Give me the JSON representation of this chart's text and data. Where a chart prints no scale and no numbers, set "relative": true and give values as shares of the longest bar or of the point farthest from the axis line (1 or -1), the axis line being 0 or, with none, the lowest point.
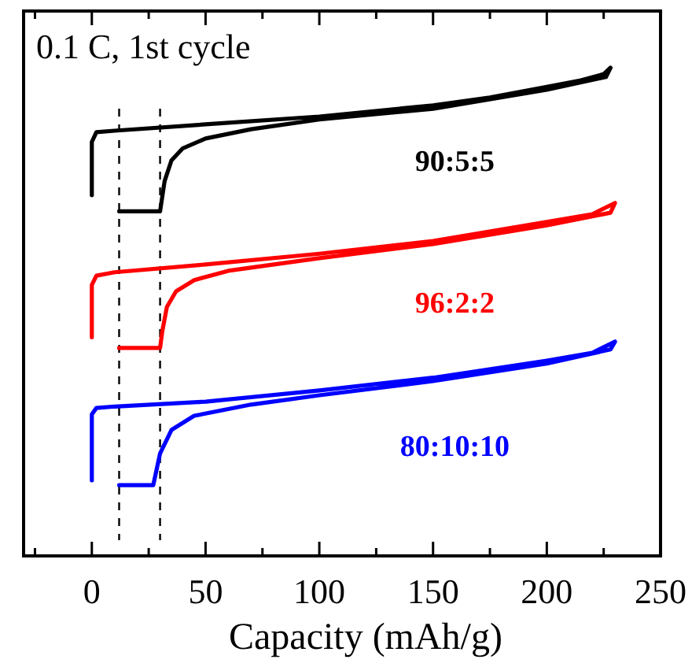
{
  "chart_data": {
    "type": "line",
    "title": "0.1 C, 1st cycle",
    "xlabel": "Capacity (mAh/g)",
    "relative": true,
    "xlim": [
      -30,
      250
    ],
    "xticks": [
      {
        "value": -25,
        "label": null
      },
      0,
      {
        "value": 25,
        "label": null
      },
      50,
      {
        "value": 75,
        "label": null
      },
      100,
      {
        "value": 125,
        "label": null
      },
      150,
      {
        "value": 175,
        "label": null
      },
      200,
      {
        "value": 225,
        "label": null
      },
      250
    ],
    "line_style": "solid",
    "marker": "none",
    "legend": false,
    "ref_lines": [
      {
        "axis": "x",
        "value": 12,
        "color": "#000000",
        "line_style": "dashed"
      },
      {
        "axis": "x",
        "value": 30,
        "color": "#000000",
        "line_style": "dashed"
      }
    ],
    "series": [
      {
        "name": "90:5:5",
        "color": "#000000",
        "x": [
          0,
          0,
          2,
          10,
          50,
          100,
          150,
          175,
          200,
          215,
          225,
          228,
          226,
          200,
          150,
          100,
          70,
          50,
          40,
          35,
          32,
          30,
          12
        ],
        "values": [
          0.739,
          0.848,
          0.868,
          0.871,
          0.884,
          0.9,
          0.923,
          0.939,
          0.961,
          0.974,
          0.987,
          1,
          0.981,
          0.955,
          0.916,
          0.894,
          0.874,
          0.855,
          0.835,
          0.81,
          0.768,
          0.706,
          0.706
        ]
      },
      {
        "name": "96:2:2",
        "color": "#ff0000",
        "x": [
          0,
          0,
          2,
          10,
          50,
          100,
          150,
          200,
          220,
          230,
          228,
          200,
          150,
          100,
          60,
          45,
          37,
          33,
          31,
          30,
          12
        ],
        "values": [
          0.448,
          0.555,
          0.574,
          0.581,
          0.597,
          0.619,
          0.645,
          0.684,
          0.7,
          0.723,
          0.703,
          0.677,
          0.639,
          0.61,
          0.584,
          0.565,
          0.542,
          0.51,
          0.461,
          0.426,
          0.426
        ]
      },
      {
        "name": "80:10:10",
        "color": "#0000ff",
        "x": [
          0,
          0,
          2,
          10,
          50,
          100,
          150,
          200,
          220,
          230,
          228,
          200,
          150,
          100,
          70,
          45,
          35,
          30,
          27,
          12
        ],
        "values": [
          0.155,
          0.29,
          0.303,
          0.306,
          0.316,
          0.339,
          0.365,
          0.4,
          0.416,
          0.439,
          0.423,
          0.394,
          0.358,
          0.329,
          0.31,
          0.287,
          0.258,
          0.21,
          0.145,
          0.145
        ]
      }
    ]
  }
}
